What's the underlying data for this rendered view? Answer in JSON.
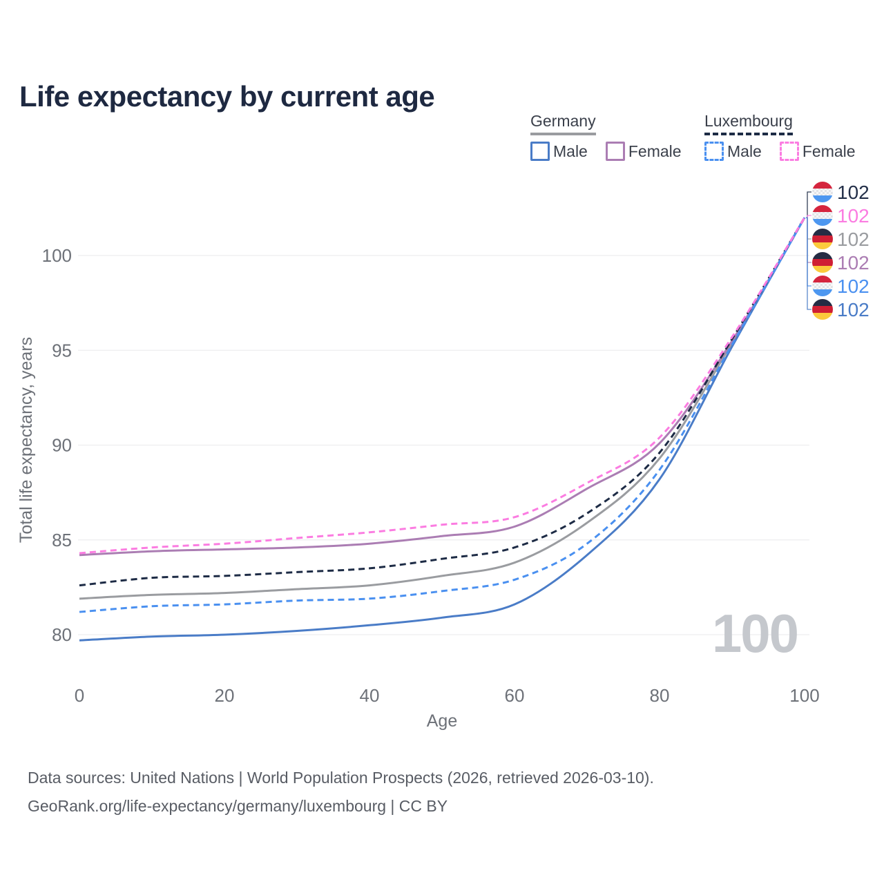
{
  "title": "Life expectancy by current age",
  "legend": {
    "groups": [
      {
        "name": "Germany",
        "underline_color": "#9a9ca0",
        "underline_style": "solid",
        "items": [
          {
            "label": "Male",
            "color": "#4a7cc7",
            "dash": false
          },
          {
            "label": "Female",
            "color": "#ab7db3",
            "dash": false
          }
        ]
      },
      {
        "name": "Luxembourg",
        "underline_color": "#1d2b45",
        "underline_style": "dashed",
        "items": [
          {
            "label": "Male",
            "color": "#4a90f0",
            "dash": true
          },
          {
            "label": "Female",
            "color": "#fb7ce1",
            "dash": true
          }
        ]
      }
    ]
  },
  "watermark": "100",
  "footer": {
    "line1": "Data sources: United Nations | World Population Prospects (2026, retrieved 2026-03-10).",
    "line2": "GeoRank.org/life-expectancy/germany/luxembourg | CC BY"
  },
  "chart_data": {
    "type": "line",
    "title": "Life expectancy by current age",
    "xlabel": "Age",
    "ylabel": "Total life expectancy, years",
    "x": [
      0,
      10,
      20,
      30,
      40,
      50,
      60,
      70,
      80,
      90,
      100
    ],
    "xticks": [
      0,
      20,
      40,
      60,
      80,
      100
    ],
    "yticks": [
      80,
      85,
      90,
      95,
      100
    ],
    "xlim": [
      0,
      100
    ],
    "ylim": [
      78.5,
      103
    ],
    "grid": "horizontal",
    "grid_color": "#ededef",
    "axis_color": "#6d7178",
    "legend_position": "top-right",
    "flags": {
      "de": [
        "#252c44",
        "#cf1f34",
        "#fbca3c"
      ],
      "lu": [
        "#d5253e",
        "checker",
        "#4d97f0"
      ]
    },
    "series": [
      {
        "name": "Luxembourg All",
        "country": "lu",
        "sex": "all",
        "color": "#1d2b45",
        "dash": true,
        "end_label": "102",
        "values": [
          82.6,
          83.0,
          83.1,
          83.3,
          83.5,
          84.0,
          84.6,
          86.4,
          89.6,
          95.6,
          102
        ]
      },
      {
        "name": "Luxembourg Female",
        "country": "lu",
        "sex": "female",
        "color": "#fb7ce1",
        "dash": true,
        "end_label": "102",
        "values": [
          84.3,
          84.6,
          84.8,
          85.1,
          85.4,
          85.8,
          86.2,
          88.0,
          90.4,
          95.7,
          102
        ]
      },
      {
        "name": "Germany All",
        "country": "de",
        "sex": "all",
        "color": "#9a9ca0",
        "dash": false,
        "end_label": "102",
        "values": [
          81.9,
          82.1,
          82.2,
          82.4,
          82.6,
          83.1,
          83.8,
          85.9,
          89.3,
          95.4,
          102
        ]
      },
      {
        "name": "Germany Female",
        "country": "de",
        "sex": "female",
        "color": "#ab7db3",
        "dash": false,
        "end_label": "102",
        "values": [
          84.2,
          84.4,
          84.5,
          84.6,
          84.8,
          85.2,
          85.7,
          87.7,
          90.1,
          95.5,
          102
        ]
      },
      {
        "name": "Luxembourg Male",
        "country": "lu",
        "sex": "male",
        "color": "#4a90f0",
        "dash": true,
        "end_label": "102",
        "values": [
          81.2,
          81.5,
          81.6,
          81.8,
          81.9,
          82.3,
          82.9,
          84.8,
          88.7,
          95.3,
          102
        ]
      },
      {
        "name": "Germany Male",
        "country": "de",
        "sex": "male",
        "color": "#4a7cc7",
        "dash": false,
        "end_label": "102",
        "values": [
          79.7,
          79.9,
          80.0,
          80.2,
          80.5,
          80.9,
          81.6,
          84.2,
          88.2,
          95.2,
          102
        ]
      }
    ],
    "draw_order": [
      2,
      3,
      5,
      0,
      4,
      1
    ]
  }
}
